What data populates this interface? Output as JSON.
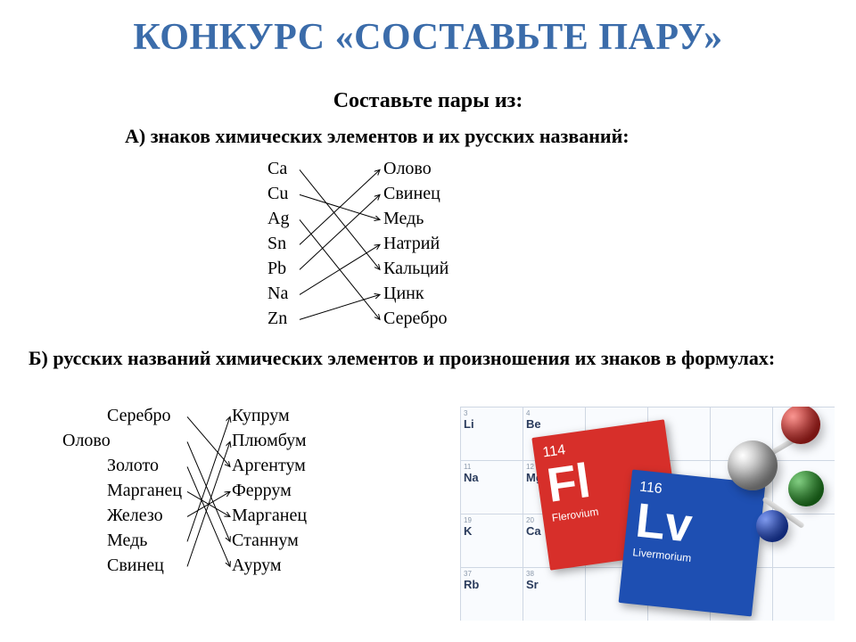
{
  "colors": {
    "title": "#3b6caa",
    "text": "#000000",
    "line": "#000000",
    "arrow": "#000000",
    "card_fl_bg": "#d72f2a",
    "card_lv_bg": "#1e4fb2",
    "grid_border": "#cfd7e3",
    "grid_bg": "#f9fbfe",
    "sphere_red": "#b2201d",
    "sphere_green": "#1f7a1f",
    "sphere_blue": "#1a3db0",
    "sphere_grey": "#8f8f8f"
  },
  "fontsizes": {
    "title": 42,
    "sub": 22,
    "body": 20
  },
  "title": "КОНКУРС «СОСТАВЬТЕ ПАРУ»",
  "subtitle": "Составьте пары из:",
  "sectionA_label": "А) знаков химических элементов и их русских названий:",
  "sectionB_label": "Б) русских названий химических элементов и произношения их знаков в формулах:",
  "tableA": {
    "left": [
      "Ca",
      "Cu",
      "Ag",
      "Sn",
      "Pb",
      "Na",
      "Zn"
    ],
    "right": [
      "Олово",
      "Свинец",
      "Медь",
      "Натрий",
      "Кальций",
      "Цинк",
      "Серебро"
    ],
    "connections": [
      {
        "from": 0,
        "to": 4
      },
      {
        "from": 1,
        "to": 2
      },
      {
        "from": 2,
        "to": 6
      },
      {
        "from": 3,
        "to": 0
      },
      {
        "from": 4,
        "to": 1
      },
      {
        "from": 5,
        "to": 3
      },
      {
        "from": 6,
        "to": 5
      }
    ],
    "line_color": "#000000",
    "line_width": 1.0,
    "arrowhead": true
  },
  "tableB": {
    "left": [
      "Серебро",
      "Олово",
      "Золото",
      "Марганец",
      "Железо",
      "Медь",
      "Свинец"
    ],
    "right": [
      "Купрум",
      "Плюмбум",
      "Аргентум",
      "Феррум",
      "Марганец",
      "Станнум",
      "Аурум"
    ],
    "left_indent_rows": [
      1
    ],
    "connections": [
      {
        "from": 0,
        "to": 2
      },
      {
        "from": 1,
        "to": 5
      },
      {
        "from": 2,
        "to": 6
      },
      {
        "from": 3,
        "to": 4
      },
      {
        "from": 4,
        "to": 3
      },
      {
        "from": 5,
        "to": 0
      },
      {
        "from": 6,
        "to": 1
      }
    ],
    "line_color": "#000000",
    "line_width": 1.0,
    "arrowhead": true
  },
  "image": {
    "grid_cells": [
      {
        "num": "3",
        "sym": "Li"
      },
      {
        "num": "4",
        "sym": "Be"
      },
      {
        "num": "",
        "sym": ""
      },
      {
        "num": "",
        "sym": ""
      },
      {
        "num": "",
        "sym": ""
      },
      {
        "num": "",
        "sym": ""
      },
      {
        "num": "11",
        "sym": "Na"
      },
      {
        "num": "12",
        "sym": "Mg"
      },
      {
        "num": "",
        "sym": ""
      },
      {
        "num": "",
        "sym": ""
      },
      {
        "num": "",
        "sym": ""
      },
      {
        "num": "",
        "sym": ""
      },
      {
        "num": "19",
        "sym": "K"
      },
      {
        "num": "20",
        "sym": "Ca"
      },
      {
        "num": "",
        "sym": ""
      },
      {
        "num": "",
        "sym": ""
      },
      {
        "num": "",
        "sym": ""
      },
      {
        "num": "",
        "sym": ""
      },
      {
        "num": "37",
        "sym": "Rb"
      },
      {
        "num": "38",
        "sym": "Sr"
      },
      {
        "num": "",
        "sym": ""
      },
      {
        "num": "",
        "sym": ""
      },
      {
        "num": "",
        "sym": ""
      },
      {
        "num": "",
        "sym": ""
      }
    ],
    "card_fl": {
      "number": "114",
      "symbol": "Fl",
      "name": "Flerovium"
    },
    "card_lv": {
      "number": "116",
      "symbol": "Lv",
      "name": "Livermorium"
    }
  }
}
